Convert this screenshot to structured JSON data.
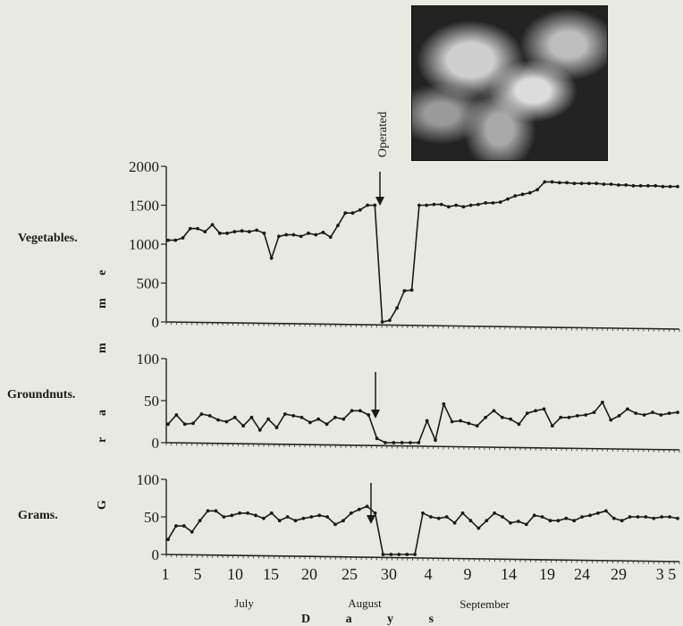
{
  "chart_data": {
    "type": "line",
    "x_ticks": [
      "1",
      "5",
      "10",
      "15",
      "20",
      "25",
      "30",
      "4",
      "9",
      "14",
      "19",
      "24",
      "29",
      "3 5"
    ],
    "months": [
      "July",
      "August",
      "September"
    ],
    "xlabel": "D a y s",
    "ylabel": "G r a m m e",
    "annotation": "Operated",
    "panels": [
      {
        "name": "Vegetables.",
        "ylim": [
          0,
          2000
        ],
        "yticks": [
          "0",
          "500",
          "1000",
          "1500",
          "2000"
        ],
        "values": [
          1050,
          1050,
          1080,
          1200,
          1200,
          1160,
          1250,
          1140,
          1140,
          1160,
          1170,
          1160,
          1180,
          1140,
          820,
          1100,
          1120,
          1120,
          1100,
          1140,
          1120,
          1150,
          1090,
          1240,
          1400,
          1400,
          1440,
          1500,
          1500,
          0,
          20,
          180,
          400,
          410,
          1500,
          1500,
          1510,
          1510,
          1480,
          1500,
          1480,
          1500,
          1510,
          1530,
          1530,
          1540,
          1580,
          1620,
          1640,
          1660,
          1700,
          1800,
          1800,
          1790,
          1790,
          1780,
          1780,
          1780,
          1780,
          1770,
          1770,
          1760,
          1760,
          1750,
          1750,
          1750,
          1750,
          1740,
          1740,
          1740
        ]
      },
      {
        "name": "Groundnuts.",
        "ylim": [
          0,
          100
        ],
        "yticks": [
          "0",
          "50",
          "100"
        ],
        "values": [
          22,
          33,
          22,
          23,
          34,
          32,
          27,
          25,
          30,
          20,
          30,
          15,
          28,
          18,
          34,
          32,
          30,
          24,
          28,
          22,
          30,
          28,
          38,
          38,
          33,
          5,
          0,
          0,
          0,
          0,
          0,
          26,
          3,
          46,
          25,
          26,
          23,
          20,
          30,
          38,
          30,
          28,
          22,
          35,
          38,
          40,
          20,
          30,
          30,
          32,
          33,
          36,
          48,
          27,
          32,
          40,
          35,
          33,
          36,
          33,
          35,
          36
        ]
      },
      {
        "name": "Grams.",
        "ylim": [
          0,
          100
        ],
        "yticks": [
          "0",
          "50",
          "100"
        ],
        "values": [
          20,
          38,
          38,
          30,
          45,
          58,
          58,
          50,
          52,
          55,
          55,
          52,
          48,
          55,
          45,
          50,
          45,
          48,
          50,
          52,
          50,
          40,
          45,
          55,
          60,
          64,
          55,
          0,
          0,
          0,
          0,
          0,
          55,
          50,
          48,
          50,
          42,
          55,
          45,
          35,
          45,
          55,
          50,
          42,
          44,
          40,
          52,
          50,
          45,
          45,
          48,
          45,
          50,
          52,
          55,
          58,
          48,
          45,
          50,
          50,
          50,
          48,
          50,
          50,
          48
        ]
      }
    ]
  }
}
